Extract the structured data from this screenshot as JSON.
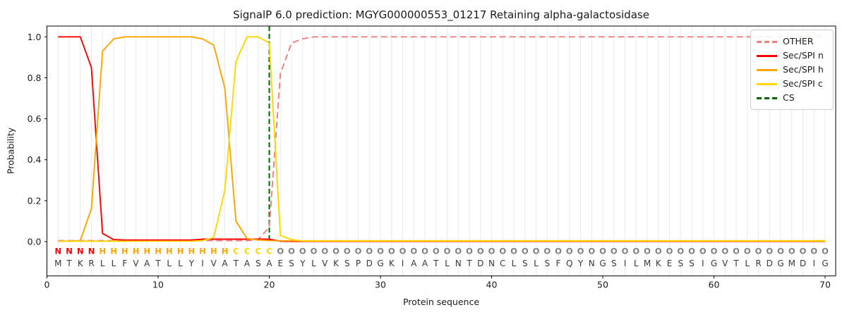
{
  "chart_data": {
    "type": "line",
    "title": "SignalP 6.0 prediction: MGYG000000553_01217 Retaining alpha-galactosidase",
    "xlabel": "Protein sequence",
    "ylabel": "Probability",
    "xlim": [
      0,
      70.9
    ],
    "ylim": [
      -0.17,
      1.05
    ],
    "xticks": [
      0,
      10,
      20,
      30,
      40,
      50,
      60,
      70
    ],
    "yticks": [
      0.0,
      0.2,
      0.4,
      0.6,
      0.8,
      1.0
    ],
    "grid": "vertical line at every residue position, light gray; no horizontal grid",
    "x_start": 1,
    "series": [
      {
        "name": "OTHER",
        "color": "#f08080",
        "style": "dashed",
        "values": [
          0.005,
          0.005,
          0.005,
          0.005,
          0.005,
          0.005,
          0.005,
          0.005,
          0.005,
          0.005,
          0.005,
          0.005,
          0.005,
          0.005,
          0.005,
          0.005,
          0.005,
          0.005,
          0.01,
          0.07,
          0.82,
          0.97,
          0.99,
          1.0,
          1.0,
          1.0,
          1.0,
          1.0,
          1.0,
          1.0,
          1.0,
          1.0,
          1.0,
          1.0,
          1.0,
          1.0,
          1.0,
          1.0,
          1.0,
          1.0,
          1.0,
          1.0,
          1.0,
          1.0,
          1.0,
          1.0,
          1.0,
          1.0,
          1.0,
          1.0,
          1.0,
          1.0,
          1.0,
          1.0,
          1.0,
          1.0,
          1.0,
          1.0,
          1.0,
          1.0,
          1.0,
          1.0,
          1.0,
          1.0,
          1.0,
          1.0,
          1.0,
          1.0,
          1.0,
          1.0
        ]
      },
      {
        "name": "Sec/SPI n",
        "color": "#ff0000",
        "style": "solid",
        "values": [
          1.0,
          1.0,
          1.0,
          0.85,
          0.04,
          0.01,
          0.008,
          0.008,
          0.008,
          0.008,
          0.008,
          0.008,
          0.008,
          0.012,
          0.012,
          0.012,
          0.012,
          0.012,
          0.012,
          0.012,
          0.002,
          0.001,
          0.001,
          0.001,
          0.001,
          0.001,
          0.001,
          0.001,
          0.001,
          0.001,
          0.001,
          0.001,
          0.001,
          0.001,
          0.001,
          0.001,
          0.001,
          0.001,
          0.001,
          0.001,
          0.001,
          0.001,
          0.001,
          0.001,
          0.001,
          0.001,
          0.001,
          0.001,
          0.001,
          0.001,
          0.001,
          0.001,
          0.001,
          0.001,
          0.001,
          0.001,
          0.001,
          0.001,
          0.001,
          0.001,
          0.001,
          0.001,
          0.001,
          0.001,
          0.001,
          0.001,
          0.001,
          0.001,
          0.001,
          0.001
        ]
      },
      {
        "name": "Sec/SPI h",
        "color": "#ffa500",
        "style": "solid",
        "values": [
          0.002,
          0.002,
          0.005,
          0.16,
          0.93,
          0.99,
          1.0,
          1.0,
          1.0,
          1.0,
          1.0,
          1.0,
          1.0,
          0.99,
          0.96,
          0.75,
          0.1,
          0.015,
          0.008,
          0.005,
          0.004,
          0.004,
          0.004,
          0.004,
          0.004,
          0.004,
          0.004,
          0.004,
          0.004,
          0.004,
          0.004,
          0.004,
          0.004,
          0.004,
          0.004,
          0.004,
          0.004,
          0.004,
          0.004,
          0.004,
          0.004,
          0.004,
          0.004,
          0.004,
          0.004,
          0.004,
          0.004,
          0.004,
          0.004,
          0.004,
          0.004,
          0.004,
          0.004,
          0.004,
          0.004,
          0.004,
          0.004,
          0.004,
          0.004,
          0.004,
          0.004,
          0.004,
          0.004,
          0.004,
          0.004,
          0.004,
          0.004,
          0.004,
          0.004,
          0.004
        ]
      },
      {
        "name": "Sec/SPI c",
        "color": "#ffd700",
        "style": "solid",
        "values": [
          0.002,
          0.002,
          0.002,
          0.002,
          0.002,
          0.002,
          0.002,
          0.002,
          0.002,
          0.002,
          0.002,
          0.002,
          0.002,
          0.005,
          0.02,
          0.25,
          0.88,
          1.0,
          1.0,
          0.97,
          0.03,
          0.01,
          0.003,
          0.003,
          0.003,
          0.003,
          0.003,
          0.003,
          0.003,
          0.003,
          0.003,
          0.003,
          0.003,
          0.003,
          0.003,
          0.003,
          0.003,
          0.003,
          0.003,
          0.003,
          0.003,
          0.003,
          0.003,
          0.003,
          0.003,
          0.003,
          0.003,
          0.003,
          0.003,
          0.003,
          0.003,
          0.003,
          0.003,
          0.003,
          0.003,
          0.003,
          0.003,
          0.003,
          0.003,
          0.003,
          0.003,
          0.003,
          0.003,
          0.003,
          0.003,
          0.003,
          0.003,
          0.003,
          0.003,
          0.003
        ]
      }
    ],
    "cs_line": {
      "name": "CS",
      "position": 20,
      "color": "#006400",
      "style": "dashed"
    },
    "sequence": "MTKRLLFVATLLYIVATASAESYLVKSPDGKIAATLNTDNCLSLSFQYNGSILMKESSIGVTLRDGMDIG",
    "regions": "NNNNHHHHHHHHHHHHCCCCOOOOOOOOOOOOOOOOOOOOOOOOOOOOOOOOOOOOOOOOOOOOOOOOOO",
    "region_colors": {
      "N": "#ff0000",
      "H": "#ffa500",
      "C": "#ffd700",
      "O": "#808080"
    },
    "sequence_color": "#3a3a3a",
    "legend": {
      "position": "upper-right",
      "items": [
        {
          "label": "OTHER"
        },
        {
          "label": "Sec/SPI n"
        },
        {
          "label": "Sec/SPI h"
        },
        {
          "label": "Sec/SPI c"
        },
        {
          "label": "CS"
        }
      ]
    }
  }
}
